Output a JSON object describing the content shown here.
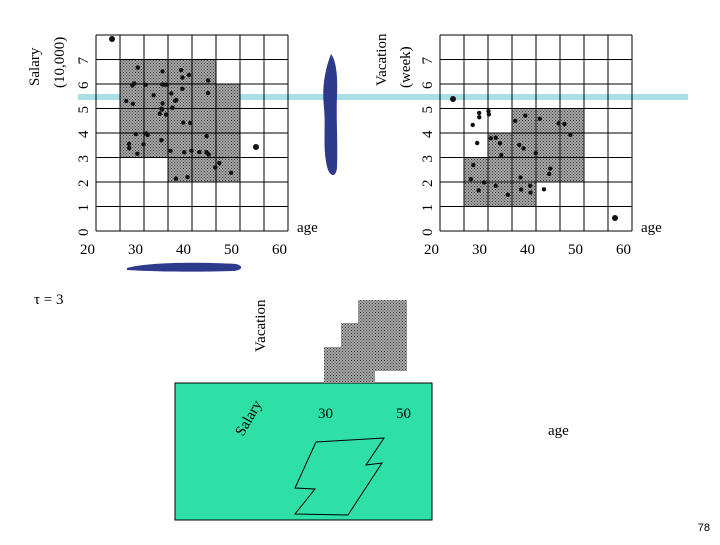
{
  "colors": {
    "grid": "#000000",
    "shade": "#8c8c8c",
    "dot": "#111111",
    "blob": "#2e3a8c",
    "band": "#a9dfe6",
    "teal": "#2ee0a6"
  },
  "plot_left": {
    "y_label_line1": "Salary",
    "y_label_line2": "(10,000)",
    "y_ticks": [
      "0",
      "1",
      "2",
      "3",
      "4",
      "5",
      "6",
      "7"
    ],
    "x_ticks": [
      "20",
      "30",
      "40",
      "50",
      "60"
    ],
    "x_label": "age"
  },
  "plot_right": {
    "y_label_line1": "Vacation",
    "y_label_line2": "(week)",
    "y_ticks": [
      "0",
      "1",
      "2",
      "3",
      "4",
      "5",
      "6",
      "7"
    ],
    "x_ticks": [
      "20",
      "30",
      "40",
      "50",
      "60"
    ],
    "x_label": "age"
  },
  "threshold_label": "τ = 3",
  "plot_3d": {
    "vacation_label": "Vacation",
    "salary_label": "Salary",
    "x_ticks": [
      "30",
      "50"
    ],
    "age_label": "age"
  },
  "page_number": "78"
}
